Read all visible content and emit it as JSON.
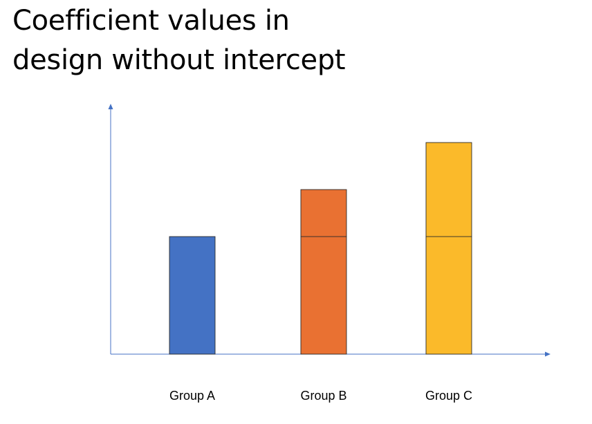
{
  "title_lines": [
    "Coefficient values in",
    "design without intercept"
  ],
  "chart_data": {
    "type": "bar",
    "title": "Coefficient values in design without intercept",
    "categories": [
      "Group A",
      "Group B",
      "Group C"
    ],
    "values": [
      1.0,
      1.4,
      1.8
    ],
    "segments": [
      [
        1.0
      ],
      [
        1.0,
        0.4
      ],
      [
        1.0,
        0.8
      ]
    ],
    "colors": [
      "#4472C4",
      "#E97132",
      "#FBBA2A"
    ],
    "axis_color": "#4472C4",
    "ylim": [
      0,
      2.13
    ],
    "xlabel": "",
    "ylabel": "",
    "grid": false,
    "legend": "none"
  }
}
